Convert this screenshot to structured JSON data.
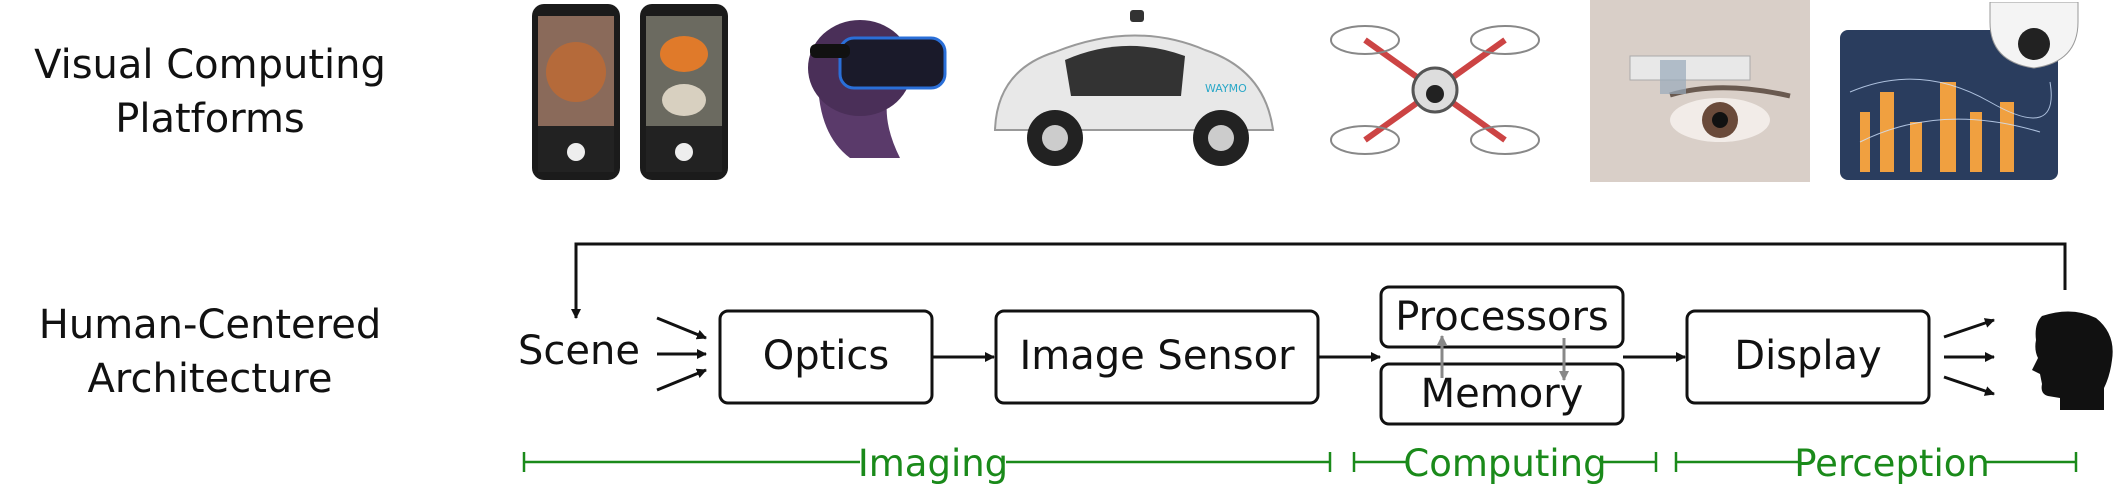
{
  "rows": {
    "platforms_label": [
      "Visual Computing",
      "Platforms"
    ],
    "architecture_label": [
      "Human-Centered",
      "Architecture"
    ]
  },
  "platforms": [
    {
      "name": "smartphone-camera",
      "icon": "smartphone-icon"
    },
    {
      "name": "vr-headset",
      "icon": "vr-headset-icon"
    },
    {
      "name": "autonomous-car",
      "icon": "self-driving-car-icon",
      "logo_text": "WAYMO"
    },
    {
      "name": "drone",
      "icon": "drone-icon"
    },
    {
      "name": "smart-glasses",
      "icon": "smart-glasses-icon"
    },
    {
      "name": "smart-city-camera",
      "icon": "security-camera-icon"
    }
  ],
  "pipeline": {
    "scene": "Scene",
    "optics": "Optics",
    "image_sensor": "Image Sensor",
    "processors": "Processors",
    "memory": "Memory",
    "display": "Display",
    "human_icon": "human-head-icon"
  },
  "stages": {
    "imaging": "Imaging",
    "computing": "Computing",
    "perception": "Perception",
    "color": "#1a8a1a"
  }
}
